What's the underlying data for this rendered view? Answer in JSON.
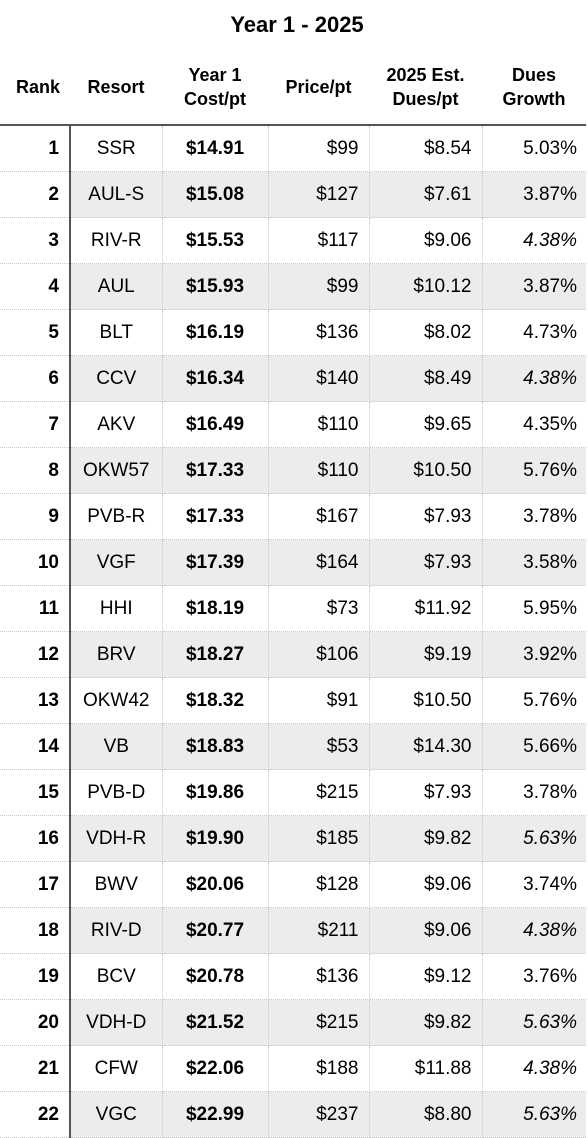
{
  "title": "Year 1 - 2025",
  "headers": {
    "rank": "Rank",
    "resort": "Resort",
    "cost_line1": "Year 1",
    "cost_line2": "Cost/pt",
    "price": "Price/pt",
    "dues_line1": "2025 Est.",
    "dues_line2": "Dues/pt",
    "growth_line1": "Dues",
    "growth_line2": "Growth"
  },
  "rows": [
    {
      "rank": "1",
      "resort": "SSR",
      "cost": "$14.91",
      "price": "$99",
      "dues": "$8.54",
      "growth": "5.03%",
      "italic": false
    },
    {
      "rank": "2",
      "resort": "AUL-S",
      "cost": "$15.08",
      "price": "$127",
      "dues": "$7.61",
      "growth": "3.87%",
      "italic": false
    },
    {
      "rank": "3",
      "resort": "RIV-R",
      "cost": "$15.53",
      "price": "$117",
      "dues": "$9.06",
      "growth": "4.38%",
      "italic": true
    },
    {
      "rank": "4",
      "resort": "AUL",
      "cost": "$15.93",
      "price": "$99",
      "dues": "$10.12",
      "growth": "3.87%",
      "italic": false
    },
    {
      "rank": "5",
      "resort": "BLT",
      "cost": "$16.19",
      "price": "$136",
      "dues": "$8.02",
      "growth": "4.73%",
      "italic": false
    },
    {
      "rank": "6",
      "resort": "CCV",
      "cost": "$16.34",
      "price": "$140",
      "dues": "$8.49",
      "growth": "4.38%",
      "italic": true
    },
    {
      "rank": "7",
      "resort": "AKV",
      "cost": "$16.49",
      "price": "$110",
      "dues": "$9.65",
      "growth": "4.35%",
      "italic": false
    },
    {
      "rank": "8",
      "resort": "OKW57",
      "cost": "$17.33",
      "price": "$110",
      "dues": "$10.50",
      "growth": "5.76%",
      "italic": false
    },
    {
      "rank": "9",
      "resort": "PVB-R",
      "cost": "$17.33",
      "price": "$167",
      "dues": "$7.93",
      "growth": "3.78%",
      "italic": false
    },
    {
      "rank": "10",
      "resort": "VGF",
      "cost": "$17.39",
      "price": "$164",
      "dues": "$7.93",
      "growth": "3.58%",
      "italic": false
    },
    {
      "rank": "11",
      "resort": "HHI",
      "cost": "$18.19",
      "price": "$73",
      "dues": "$11.92",
      "growth": "5.95%",
      "italic": false
    },
    {
      "rank": "12",
      "resort": "BRV",
      "cost": "$18.27",
      "price": "$106",
      "dues": "$9.19",
      "growth": "3.92%",
      "italic": false
    },
    {
      "rank": "13",
      "resort": "OKW42",
      "cost": "$18.32",
      "price": "$91",
      "dues": "$10.50",
      "growth": "5.76%",
      "italic": false
    },
    {
      "rank": "14",
      "resort": "VB",
      "cost": "$18.83",
      "price": "$53",
      "dues": "$14.30",
      "growth": "5.66%",
      "italic": false
    },
    {
      "rank": "15",
      "resort": "PVB-D",
      "cost": "$19.86",
      "price": "$215",
      "dues": "$7.93",
      "growth": "3.78%",
      "italic": false
    },
    {
      "rank": "16",
      "resort": "VDH-R",
      "cost": "$19.90",
      "price": "$185",
      "dues": "$9.82",
      "growth": "5.63%",
      "italic": true
    },
    {
      "rank": "17",
      "resort": "BWV",
      "cost": "$20.06",
      "price": "$128",
      "dues": "$9.06",
      "growth": "3.74%",
      "italic": false
    },
    {
      "rank": "18",
      "resort": "RIV-D",
      "cost": "$20.77",
      "price": "$211",
      "dues": "$9.06",
      "growth": "4.38%",
      "italic": true
    },
    {
      "rank": "19",
      "resort": "BCV",
      "cost": "$20.78",
      "price": "$136",
      "dues": "$9.12",
      "growth": "3.76%",
      "italic": false
    },
    {
      "rank": "20",
      "resort": "VDH-D",
      "cost": "$21.52",
      "price": "$215",
      "dues": "$9.82",
      "growth": "5.63%",
      "italic": true
    },
    {
      "rank": "21",
      "resort": "CFW",
      "cost": "$22.06",
      "price": "$188",
      "dues": "$11.88",
      "growth": "4.38%",
      "italic": true
    },
    {
      "rank": "22",
      "resort": "VGC",
      "cost": "$22.99",
      "price": "$237",
      "dues": "$8.80",
      "growth": "5.63%",
      "italic": true
    }
  ]
}
